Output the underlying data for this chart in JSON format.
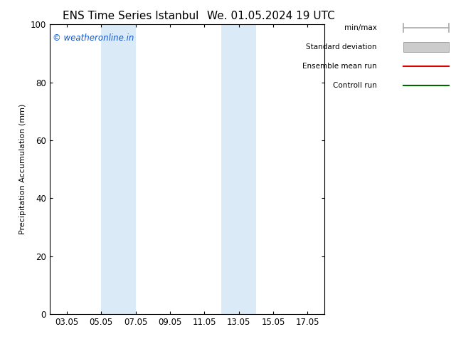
{
  "title_left": "ENS Time Series Istanbul",
  "title_right": "We. 01.05.2024 19 UTC",
  "ylabel": "Precipitation Accumulation (mm)",
  "ylim": [
    0,
    100
  ],
  "yticks": [
    0,
    20,
    40,
    60,
    80,
    100
  ],
  "xtick_labels": [
    "03.05",
    "05.05",
    "07.05",
    "09.05",
    "11.05",
    "13.05",
    "15.05",
    "17.05"
  ],
  "xtick_positions": [
    2,
    4,
    6,
    8,
    10,
    12,
    14,
    16
  ],
  "xlim": [
    1,
    17
  ],
  "shaded_bands": [
    {
      "x_start": 4,
      "x_end": 6,
      "color": "#daeaf7",
      "alpha": 1.0
    },
    {
      "x_start": 11,
      "x_end": 13,
      "color": "#daeaf7",
      "alpha": 1.0
    }
  ],
  "watermark_text": "© weatheronline.in",
  "watermark_color": "#1155cc",
  "watermark_fontsize": 8.5,
  "legend_items": [
    {
      "label": "min/max",
      "color": "#aaaaaa",
      "type": "minmax"
    },
    {
      "label": "Standard deviation",
      "color": "#cccccc",
      "type": "rect"
    },
    {
      "label": "Ensemble mean run",
      "color": "#dd0000",
      "type": "line"
    },
    {
      "label": "Controll run",
      "color": "#006600",
      "type": "line"
    }
  ],
  "background_color": "#ffffff",
  "title_fontsize": 11,
  "ylabel_fontsize": 8,
  "tick_fontsize": 8.5,
  "legend_fontsize": 7.5
}
